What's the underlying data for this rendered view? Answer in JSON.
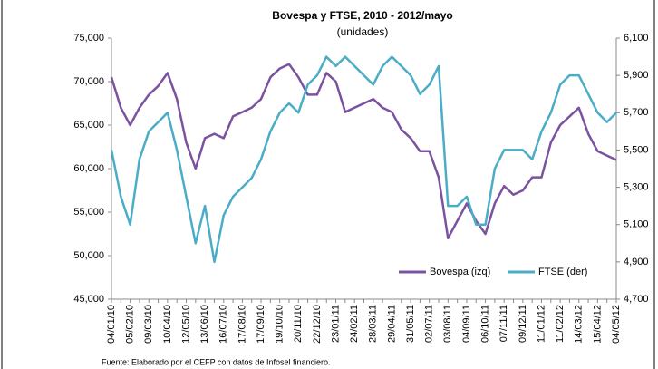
{
  "chart_data": {
    "type": "line",
    "title": "Bovespa y FTSE, 2010 - 2012/mayo",
    "subtitle": "(unidades)",
    "footnote": "Fuente: Elaborado por el CEFP con datos de Infosel financiero.",
    "categories": [
      "04/01/10",
      null,
      "05/02/10",
      null,
      "09/03/10",
      null,
      "10/04/10",
      null,
      "12/05/10",
      null,
      "13/06/10",
      null,
      "16/07/10",
      null,
      "17/08/10",
      null,
      "17/09/10",
      null,
      "19/10/10",
      null,
      "20/11/10",
      null,
      "22/12/10",
      null,
      "23/01/11",
      null,
      "24/02/11",
      null,
      "28/03/11",
      null,
      "29/04/11",
      null,
      "31/05/11",
      null,
      "02/07/11",
      null,
      "03/08/11",
      null,
      "04/09/11",
      null,
      "06/10/11",
      null,
      "07/11/11",
      null,
      "09/12/11",
      null,
      "11/01/12",
      null,
      "11/02/12",
      null,
      "14/03/12",
      null,
      "15/04/12",
      null,
      "04/05/12"
    ],
    "series": [
      {
        "name": "Bovespa (izq)",
        "color": "#7b52a0",
        "axis": "y",
        "values": [
          70500,
          67000,
          65000,
          67000,
          68500,
          69500,
          71000,
          68000,
          63000,
          60000,
          63500,
          64000,
          63500,
          66000,
          66500,
          67000,
          68000,
          70500,
          71500,
          72000,
          70500,
          68500,
          68500,
          71000,
          70000,
          66500,
          67000,
          67500,
          68000,
          67000,
          66500,
          64500,
          63500,
          62000,
          62000,
          59000,
          52000,
          54000,
          56000,
          54000,
          52500,
          56000,
          58000,
          57000,
          57500,
          59000,
          59000,
          63000,
          65000,
          66000,
          67000,
          64000,
          62000,
          61500,
          61000
        ]
      },
      {
        "name": "FTSE (der)",
        "color": "#4bacc6",
        "axis": "y2",
        "values": [
          5500,
          5250,
          5100,
          5450,
          5600,
          5650,
          5700,
          5500,
          5250,
          5000,
          5200,
          4900,
          5150,
          5250,
          5300,
          5350,
          5450,
          5600,
          5700,
          5750,
          5700,
          5850,
          5900,
          6000,
          5950,
          6000,
          5950,
          5900,
          5850,
          5950,
          6000,
          5950,
          5900,
          5800,
          5850,
          5950,
          5200,
          5200,
          5250,
          5100,
          5100,
          5400,
          5500,
          5500,
          5500,
          5450,
          5600,
          5700,
          5850,
          5900,
          5900,
          5800,
          5700,
          5650,
          5700
        ]
      }
    ],
    "ylim": [
      45000,
      75000
    ],
    "yticks": [
      {
        "value": 45000,
        "label": "45,000"
      },
      {
        "value": 50000,
        "label": "50,000"
      },
      {
        "value": 55000,
        "label": "55,000"
      },
      {
        "value": 60000,
        "label": "60,000"
      },
      {
        "value": 65000,
        "label": "65,000"
      },
      {
        "value": 70000,
        "label": "70,000"
      },
      {
        "value": 75000,
        "label": "75,000"
      }
    ],
    "y2lim": [
      4700,
      6100
    ],
    "y2ticks": [
      {
        "value": 4700,
        "label": "4,700"
      },
      {
        "value": 4900,
        "label": "4,900"
      },
      {
        "value": 5100,
        "label": "5,100"
      },
      {
        "value": 5300,
        "label": "5,300"
      },
      {
        "value": 5500,
        "label": "5,500"
      },
      {
        "value": 5700,
        "label": "5,700"
      },
      {
        "value": 5900,
        "label": "5,900"
      },
      {
        "value": 6100,
        "label": "6,100"
      }
    ],
    "legend": "lower right"
  }
}
